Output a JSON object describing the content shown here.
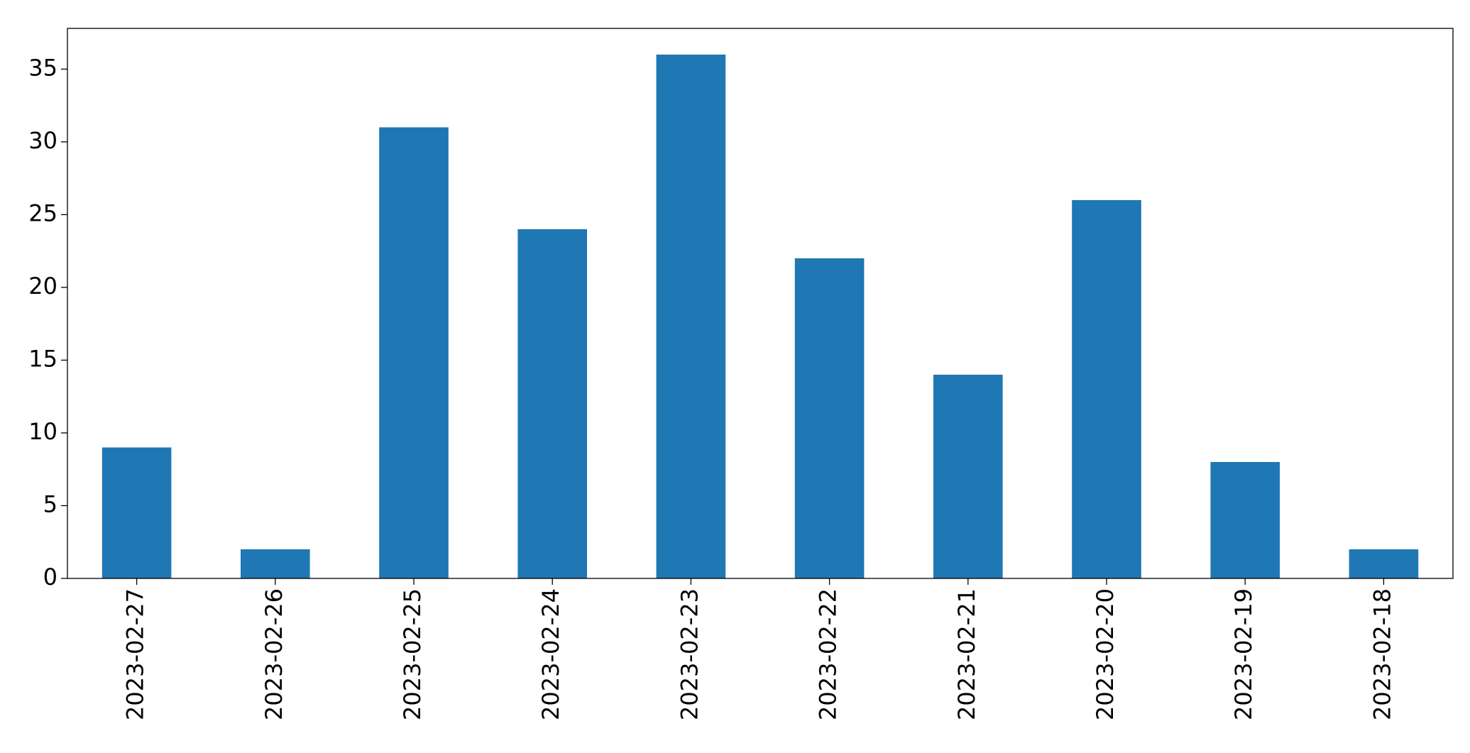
{
  "chart_data": {
    "type": "bar",
    "categories": [
      "2023-02-27",
      "2023-02-26",
      "2023-02-25",
      "2023-02-24",
      "2023-02-23",
      "2023-02-22",
      "2023-02-21",
      "2023-02-20",
      "2023-02-19",
      "2023-02-18"
    ],
    "values": [
      9,
      2,
      31,
      24,
      36,
      22,
      14,
      26,
      8,
      2
    ],
    "color": "#1f77b4",
    "ylim": [
      0,
      37.8
    ],
    "yticks": [
      0,
      5,
      10,
      15,
      20,
      25,
      30,
      35
    ],
    "grid": false
  }
}
